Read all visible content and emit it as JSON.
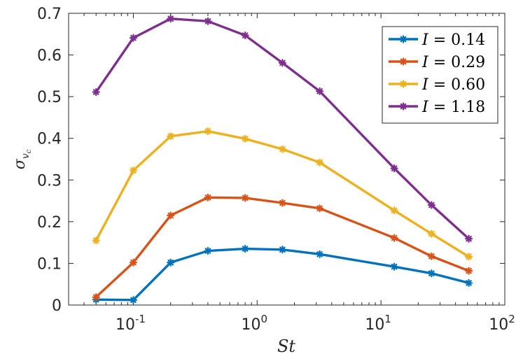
{
  "chart_data": {
    "type": "line",
    "title": "",
    "xlabel": "St",
    "ylabel": "σ",
    "ylabel_subscript": "v",
    "ylabel_subsubscript": "c",
    "xscale": "log",
    "xlim": [
      0.03,
      100
    ],
    "ylim": [
      0,
      0.7
    ],
    "x_ticks": [
      {
        "value": 0.1,
        "base": "10",
        "exp": "-1"
      },
      {
        "value": 1,
        "base": "10",
        "exp": "0"
      },
      {
        "value": 10,
        "base": "10",
        "exp": "1"
      },
      {
        "value": 100,
        "base": "10",
        "exp": "2"
      }
    ],
    "y_ticks": [
      {
        "value": 0,
        "label": "0"
      },
      {
        "value": 0.1,
        "label": "0.1"
      },
      {
        "value": 0.2,
        "label": "0.2"
      },
      {
        "value": 0.3,
        "label": "0.3"
      },
      {
        "value": 0.4,
        "label": "0.4"
      },
      {
        "value": 0.5,
        "label": "0.5"
      },
      {
        "value": 0.6,
        "label": "0.6"
      },
      {
        "value": 0.7,
        "label": "0.7"
      }
    ],
    "grid": false,
    "legend_position": "top-right",
    "x": [
      0.05,
      0.1,
      0.2,
      0.4,
      0.8,
      1.6,
      3.2,
      12.8,
      25.6,
      51.2
    ],
    "series": [
      {
        "name": "I = 0.14",
        "var": "I",
        "value_text": "0.14",
        "color": "#0072BD",
        "values": [
          0.013,
          0.012,
          0.102,
          0.13,
          0.135,
          0.133,
          0.122,
          0.092,
          0.076,
          0.053
        ]
      },
      {
        "name": "I = 0.29",
        "var": "I",
        "value_text": "0.29",
        "color": "#D95319",
        "values": [
          0.019,
          0.102,
          0.215,
          0.258,
          0.257,
          0.245,
          0.232,
          0.161,
          0.117,
          0.082
        ]
      },
      {
        "name": "I = 0.60",
        "var": "I",
        "value_text": "0.60",
        "color": "#EDB120",
        "values": [
          0.155,
          0.323,
          0.405,
          0.417,
          0.399,
          0.374,
          0.342,
          0.227,
          0.171,
          0.116
        ]
      },
      {
        "name": "I = 1.18",
        "var": "I",
        "value_text": "1.18",
        "color": "#7E2F8E",
        "values": [
          0.511,
          0.641,
          0.687,
          0.681,
          0.647,
          0.581,
          0.513,
          0.328,
          0.24,
          0.159
        ]
      }
    ]
  }
}
